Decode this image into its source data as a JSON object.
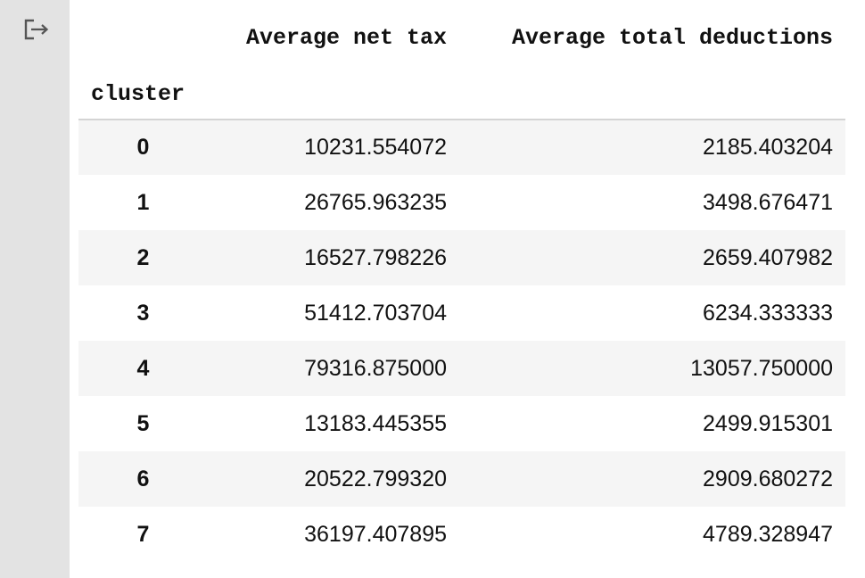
{
  "output": {
    "icon": "output-redirect-icon"
  },
  "table": {
    "columns": [
      "Average net tax",
      "Average total deductions"
    ],
    "index_name": "cluster",
    "rows": [
      {
        "index": "0",
        "net_tax": "10231.554072",
        "deductions": "2185.403204"
      },
      {
        "index": "1",
        "net_tax": "26765.963235",
        "deductions": "3498.676471"
      },
      {
        "index": "2",
        "net_tax": "16527.798226",
        "deductions": "2659.407982"
      },
      {
        "index": "3",
        "net_tax": "51412.703704",
        "deductions": "6234.333333"
      },
      {
        "index": "4",
        "net_tax": "79316.875000",
        "deductions": "13057.750000"
      },
      {
        "index": "5",
        "net_tax": "13183.445355",
        "deductions": "2499.915301"
      },
      {
        "index": "6",
        "net_tax": "20522.799320",
        "deductions": "2909.680272"
      },
      {
        "index": "7",
        "net_tax": "36197.407895",
        "deductions": "4789.328947"
      }
    ]
  }
}
